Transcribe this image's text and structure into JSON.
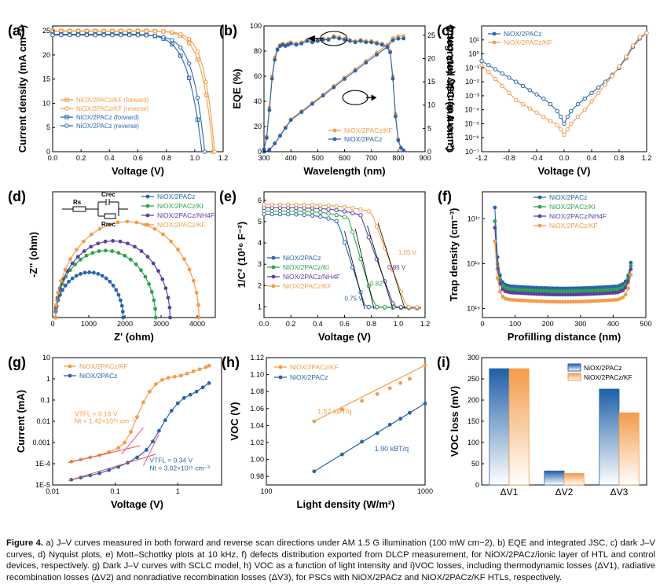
{
  "colors": {
    "orange": "#f39c4a",
    "blue": "#2a64ad",
    "green": "#2ea24a",
    "purple": "#5b3fa6",
    "pink": "#e34f8c",
    "bar_blue_top": "#1f5fa8",
    "bar_orange_top": "#f39c4a"
  },
  "caption": {
    "lead": "Figure 4.",
    "text": "a) J–V curves measured in both forward and reverse scan directions under AM 1.5 G illumination (100 mW cm−2), b) EQE and integrated JSC, c) dark J–V curves, d) Nyquist plots, e) Mott–Schottky plots at 10 kHz, f) defects distribution exported from DLCP measurement, for NiOX/2PACz/ionic layer of HTL and control devices, respectively. g) Dark J–V curves with SCLC model, h) VOC as a function of light intensity and i)VOC losses, including thermodynamic losses (ΔV1), radiative recombination losses (ΔV2) and nonradiative recombination losses (ΔV3), for PSCs with NiOX/2PACz and NiOX/2PACz/KF HTLs, respectively."
  },
  "chart_data": [
    {
      "panel": "(a)",
      "type": "line",
      "xlabel": "Voltage (V)",
      "ylabel": "Current density (mA cm⁻²)",
      "xlim": [
        0,
        1.2
      ],
      "ylim": [
        0,
        26
      ],
      "xticks": [
        "0.0",
        "0.2",
        "0.4",
        "0.6",
        "0.8",
        "1.0",
        "1.2"
      ],
      "yticks": [
        "0",
        "5",
        "10",
        "15",
        "20",
        "25"
      ],
      "legend": "bottom-left",
      "series": [
        {
          "name": "NiOX/2PACz/KF (forward)",
          "color": "orange",
          "marker": "square",
          "jsc": 25.0,
          "voc": 1.13,
          "knee": 0.88,
          "sharp": 14
        },
        {
          "name": "NiOX/2PACz/KF (reverse)",
          "color": "orange",
          "marker": "circle",
          "jsc": 24.9,
          "voc": 1.14,
          "knee": 0.92,
          "sharp": 16
        },
        {
          "name": "NiOX/2PACz (forward)",
          "color": "blue",
          "marker": "square",
          "jsc": 24.3,
          "voc": 1.05,
          "knee": 0.78,
          "sharp": 11
        },
        {
          "name": "NiOX/2PACz (reverse)",
          "color": "blue",
          "marker": "circle",
          "jsc": 24.1,
          "voc": 1.07,
          "knee": 0.82,
          "sharp": 13
        }
      ]
    },
    {
      "panel": "(b)",
      "type": "line",
      "xlabel": "Wavelength (nm)",
      "ylabel": "EQE (%)",
      "y2label": "Integrated JSC (mA cm⁻²)",
      "xlim": [
        300,
        900
      ],
      "ylim": [
        0,
        100
      ],
      "y2lim": [
        0,
        27
      ],
      "xticks": [
        "300",
        "400",
        "500",
        "600",
        "700",
        "800",
        "900"
      ],
      "yticks": [
        "0",
        "20",
        "40",
        "60",
        "80",
        "100"
      ],
      "y2ticks": [
        "0",
        "5",
        "10",
        "15",
        "20",
        "25"
      ],
      "legend": "bottom-right",
      "series": [
        {
          "name": "NiOX/2PACz/KF",
          "color": "orange",
          "eqe_x": [
            300,
            310,
            320,
            330,
            340,
            350,
            360,
            370,
            380,
            390,
            400,
            420,
            440,
            460,
            480,
            500,
            520,
            540,
            560,
            580,
            600,
            620,
            640,
            660,
            680,
            700,
            720,
            740,
            760,
            770,
            780,
            790,
            800,
            810,
            820
          ],
          "eqe_y": [
            2,
            12,
            35,
            60,
            75,
            82,
            85,
            86,
            85,
            86,
            87,
            86,
            87,
            89,
            88,
            89,
            90,
            90,
            92,
            91,
            90,
            89,
            88,
            89,
            88,
            88,
            87,
            86,
            84,
            80,
            60,
            30,
            10,
            3,
            1
          ],
          "jsc_end": 24.8
        },
        {
          "name": "NiOX/2PACz",
          "color": "blue",
          "eqe_x": [
            300,
            310,
            320,
            330,
            340,
            350,
            360,
            370,
            380,
            390,
            400,
            420,
            440,
            460,
            480,
            500,
            520,
            540,
            560,
            580,
            600,
            620,
            640,
            660,
            680,
            700,
            720,
            740,
            760,
            770,
            780,
            790,
            800,
            810,
            820
          ],
          "eqe_y": [
            2,
            11,
            33,
            58,
            73,
            81,
            84,
            85,
            84,
            85,
            86,
            85,
            86,
            88,
            87,
            88,
            89,
            89,
            91,
            90,
            89,
            88,
            87,
            88,
            87,
            87,
            86,
            85,
            83,
            79,
            58,
            28,
            9,
            3,
            1
          ],
          "jsc_end": 24.3
        }
      ]
    },
    {
      "panel": "(c)",
      "type": "line",
      "xlabel": "Voltage (V)",
      "ylabel": "Current density (mA cm⁻²)",
      "xlim": [
        -1.2,
        1.2
      ],
      "ylog": true,
      "ylim_exp": [
        -7,
        2
      ],
      "xticks": [
        "-1.2",
        "-0.8",
        "-0.4",
        "0.0",
        "0.4",
        "0.8",
        "1.2"
      ],
      "yticks": [
        "10⁻⁷",
        "10⁻⁶",
        "10⁻⁵",
        "10⁻⁴",
        "10⁻³",
        "10⁻²",
        "10⁻¹",
        "10⁰",
        "10¹"
      ],
      "legend": "top-left",
      "series": [
        {
          "name": "NiOX/2PACz",
          "color": "blue",
          "x": [
            -1.2,
            -1.1,
            -1.0,
            -0.9,
            -0.8,
            -0.7,
            -0.6,
            -0.5,
            -0.4,
            -0.3,
            -0.2,
            -0.1,
            -0.05,
            0.0,
            0.05,
            0.1,
            0.2,
            0.3,
            0.4,
            0.5,
            0.6,
            0.7,
            0.8,
            0.9,
            1.0,
            1.1,
            1.2
          ],
          "log_y": [
            -0.5,
            -0.8,
            -1.1,
            -1.4,
            -1.7,
            -2.0,
            -2.3,
            -2.6,
            -2.9,
            -3.2,
            -3.6,
            -4.1,
            -4.5,
            -5.0,
            -4.5,
            -4.1,
            -3.6,
            -3.2,
            -2.8,
            -2.4,
            -2.0,
            -1.5,
            -1.0,
            -0.3,
            0.5,
            1.1,
            1.5
          ]
        },
        {
          "name": "NiOX/2PACz/KF",
          "color": "orange",
          "x": [
            -1.2,
            -1.1,
            -1.0,
            -0.9,
            -0.8,
            -0.7,
            -0.6,
            -0.5,
            -0.4,
            -0.3,
            -0.2,
            -0.1,
            -0.05,
            0.0,
            0.05,
            0.1,
            0.2,
            0.3,
            0.4,
            0.5,
            0.6,
            0.7,
            0.8,
            0.9,
            1.0,
            1.1,
            1.2
          ],
          "log_y": [
            -0.8,
            -1.3,
            -1.8,
            -2.3,
            -2.8,
            -3.3,
            -3.6,
            -3.9,
            -4.2,
            -4.5,
            -4.8,
            -5.1,
            -5.4,
            -5.8,
            -5.4,
            -5.0,
            -4.5,
            -4.0,
            -3.4,
            -2.8,
            -2.2,
            -1.6,
            -0.9,
            -0.2,
            0.6,
            1.2,
            1.5
          ]
        }
      ]
    },
    {
      "panel": "(d)",
      "type": "scatter",
      "xlabel": "Z' (ohm)",
      "ylabel": "-Z'' (ohm)",
      "xlim": [
        0,
        4500
      ],
      "ylim": [
        0,
        2600
      ],
      "xticks": [
        "0",
        "1000",
        "2000",
        "3000",
        "4000"
      ],
      "yticks": [],
      "circuit": {
        "rs": "Rs",
        "crec": "Crec",
        "rrec": "Rrec"
      },
      "legend": "top-right",
      "series": [
        {
          "name": "NiOX/2PACz",
          "color": "blue",
          "r0": 80,
          "r1": 1950
        },
        {
          "name": "NiOX/2PACz/KI",
          "color": "green",
          "r0": 80,
          "r1": 2850
        },
        {
          "name": "NiOX/2PACz/NH4F",
          "color": "purple",
          "r0": 80,
          "r1": 3250
        },
        {
          "name": "NiOX/2PACz/KF",
          "color": "orange",
          "r0": 80,
          "r1": 4050
        }
      ]
    },
    {
      "panel": "(e)",
      "type": "line",
      "xlabel": "Voltage (V)",
      "ylabel": "1/C² (10¹⁶ F⁻²)",
      "xlim": [
        0,
        1.2
      ],
      "ylim": [
        0.5,
        6.4
      ],
      "xticks": [
        "0.0",
        "0.2",
        "0.4",
        "0.6",
        "0.8",
        "1.0",
        "1.2"
      ],
      "yticks": [
        "1",
        "2",
        "3",
        "4",
        "5",
        "6"
      ],
      "legend": "bottom-left",
      "annotations": [
        "0.75 V",
        "0.82",
        "0.96 V",
        "1.05 V"
      ],
      "series": [
        {
          "name": "NiOX/2PACz",
          "color": "blue",
          "plateau": 5.35,
          "knee": 0.55,
          "vbi": 0.75
        },
        {
          "name": "NiOX/2PACz/KI",
          "color": "green",
          "plateau": 5.5,
          "knee": 0.63,
          "vbi": 0.82
        },
        {
          "name": "NiOX/2PACz/NH4F",
          "color": "purple",
          "plateau": 5.65,
          "knee": 0.72,
          "vbi": 0.96
        },
        {
          "name": "NiOX/2PACz/KF",
          "color": "orange",
          "plateau": 5.8,
          "knee": 0.8,
          "vbi": 1.05
        }
      ]
    },
    {
      "panel": "(f)",
      "type": "line",
      "xlabel": "Profilling distance (nm)",
      "ylabel": "Trap density (cm⁻³)",
      "xlim": [
        0,
        500
      ],
      "ylog": true,
      "ylim_exp": [
        14.8,
        17.6
      ],
      "xticks": [
        "0",
        "100",
        "200",
        "300",
        "400",
        "500"
      ],
      "yticks": [
        "10¹⁵",
        "10¹⁶",
        "10¹⁷"
      ],
      "legend": "top-right",
      "series": [
        {
          "name": "NiOX/2PACz",
          "color": "blue",
          "flat": 15.5,
          "left": 17.25,
          "right": 16.45
        },
        {
          "name": "NiOX/2PACz/KI",
          "color": "green",
          "flat": 15.43,
          "left": 16.95,
          "right": 16.38
        },
        {
          "name": "NiOX/2PACz/NH4F",
          "color": "purple",
          "flat": 15.36,
          "left": 16.8,
          "right": 16.3
        },
        {
          "name": "NiOX/2PACz/KF",
          "color": "orange",
          "flat": 15.2,
          "left": 16.5,
          "right": 16.2
        }
      ]
    },
    {
      "panel": "(g)",
      "type": "line",
      "xlabel": "Voltage (V)",
      "ylabel": "Current (mA)",
      "xlog": true,
      "xlim_exp": [
        -2,
        0.7
      ],
      "ylog": true,
      "ylim_exp": [
        -5,
        1
      ],
      "xticks": [
        "0.01",
        "0.1",
        "1"
      ],
      "yticks": [
        "1E-5",
        "1E-4",
        "0.001",
        "0.01",
        "0.1",
        "1",
        "10"
      ],
      "legend": "top-left",
      "annotations": {
        "kf_vtfl": "VTFL = 0.16 V",
        "kf_nt": "Nt = 1.42×10¹⁵ cm⁻³",
        "ctl_vtfl": "VTFL = 0.34 V",
        "ctl_nt": "Nt = 3.02×10¹⁵ cm⁻³"
      },
      "series": [
        {
          "name": "NiOX/2PACz/KF",
          "color": "orange",
          "logx": [
            -1.7,
            -1.55,
            -1.4,
            -1.25,
            -1.1,
            -0.95,
            -0.85,
            -0.75,
            -0.65,
            -0.55,
            -0.45,
            -0.35,
            -0.25,
            -0.15,
            -0.05,
            0.05,
            0.15,
            0.25,
            0.35,
            0.45,
            0.5
          ],
          "logy": [
            -3.9,
            -3.8,
            -3.7,
            -3.6,
            -3.45,
            -3.25,
            -3.0,
            -2.5,
            -1.8,
            -1.1,
            -0.6,
            -0.25,
            -0.05,
            0.05,
            0.1,
            0.15,
            0.25,
            0.35,
            0.45,
            0.55,
            0.62
          ]
        },
        {
          "name": "NiOX/2PACz",
          "color": "blue",
          "logx": [
            -1.7,
            -1.55,
            -1.4,
            -1.25,
            -1.1,
            -0.95,
            -0.8,
            -0.65,
            -0.5,
            -0.4,
            -0.3,
            -0.2,
            -0.1,
            0.0,
            0.1,
            0.2,
            0.3,
            0.4,
            0.5
          ],
          "logy": [
            -4.75,
            -4.65,
            -4.55,
            -4.45,
            -4.3,
            -4.15,
            -3.95,
            -3.7,
            -3.35,
            -2.95,
            -2.45,
            -1.95,
            -1.5,
            -1.15,
            -0.9,
            -0.75,
            -0.6,
            -0.4,
            -0.2
          ]
        }
      ]
    },
    {
      "panel": "(h)",
      "type": "scatter",
      "xlabel": "Light density (W/m²)",
      "ylabel": "VOC (V)",
      "xlog": true,
      "xlim": [
        100,
        1000
      ],
      "ylim": [
        0.97,
        1.12
      ],
      "xticks": [
        "100",
        "1000"
      ],
      "yticks": [
        "0.98",
        "1.00",
        "1.02",
        "1.04",
        "1.06",
        "1.08",
        "1.10",
        "1.12"
      ],
      "legend": "top-left",
      "annotations": {
        "kf": "1.57 kBT/q",
        "ctl": "1.90 kBT/q"
      },
      "series": [
        {
          "name": "NiOX/2PACz/KF",
          "color": "orange",
          "x": [
            200,
            300,
            400,
            500,
            600,
            700,
            800,
            1000
          ],
          "y": [
            1.045,
            1.059,
            1.069,
            1.077,
            1.084,
            1.09,
            1.095,
            1.111
          ]
        },
        {
          "name": "NiOX/2PACz",
          "color": "blue",
          "x": [
            200,
            300,
            400,
            500,
            600,
            700,
            800,
            1000
          ],
          "y": [
            0.986,
            1.006,
            1.021,
            1.031,
            1.041,
            1.048,
            1.055,
            1.066
          ]
        }
      ]
    },
    {
      "panel": "(i)",
      "type": "bar",
      "xlabel": "",
      "ylabel": "VOC loss (mV)",
      "ylim": [
        0,
        300
      ],
      "yticks": [
        "0",
        "50",
        "100",
        "150",
        "200",
        "250",
        "300"
      ],
      "categories": [
        "ΔV1",
        "ΔV2",
        "ΔV3"
      ],
      "legend": "top-right",
      "series": [
        {
          "name": "NiOX/2PACz",
          "color": "blue",
          "values": [
            274,
            33,
            226
          ]
        },
        {
          "name": "NiOX/2PACz/KF",
          "color": "orange",
          "values": [
            274,
            27,
            170
          ]
        }
      ]
    }
  ]
}
